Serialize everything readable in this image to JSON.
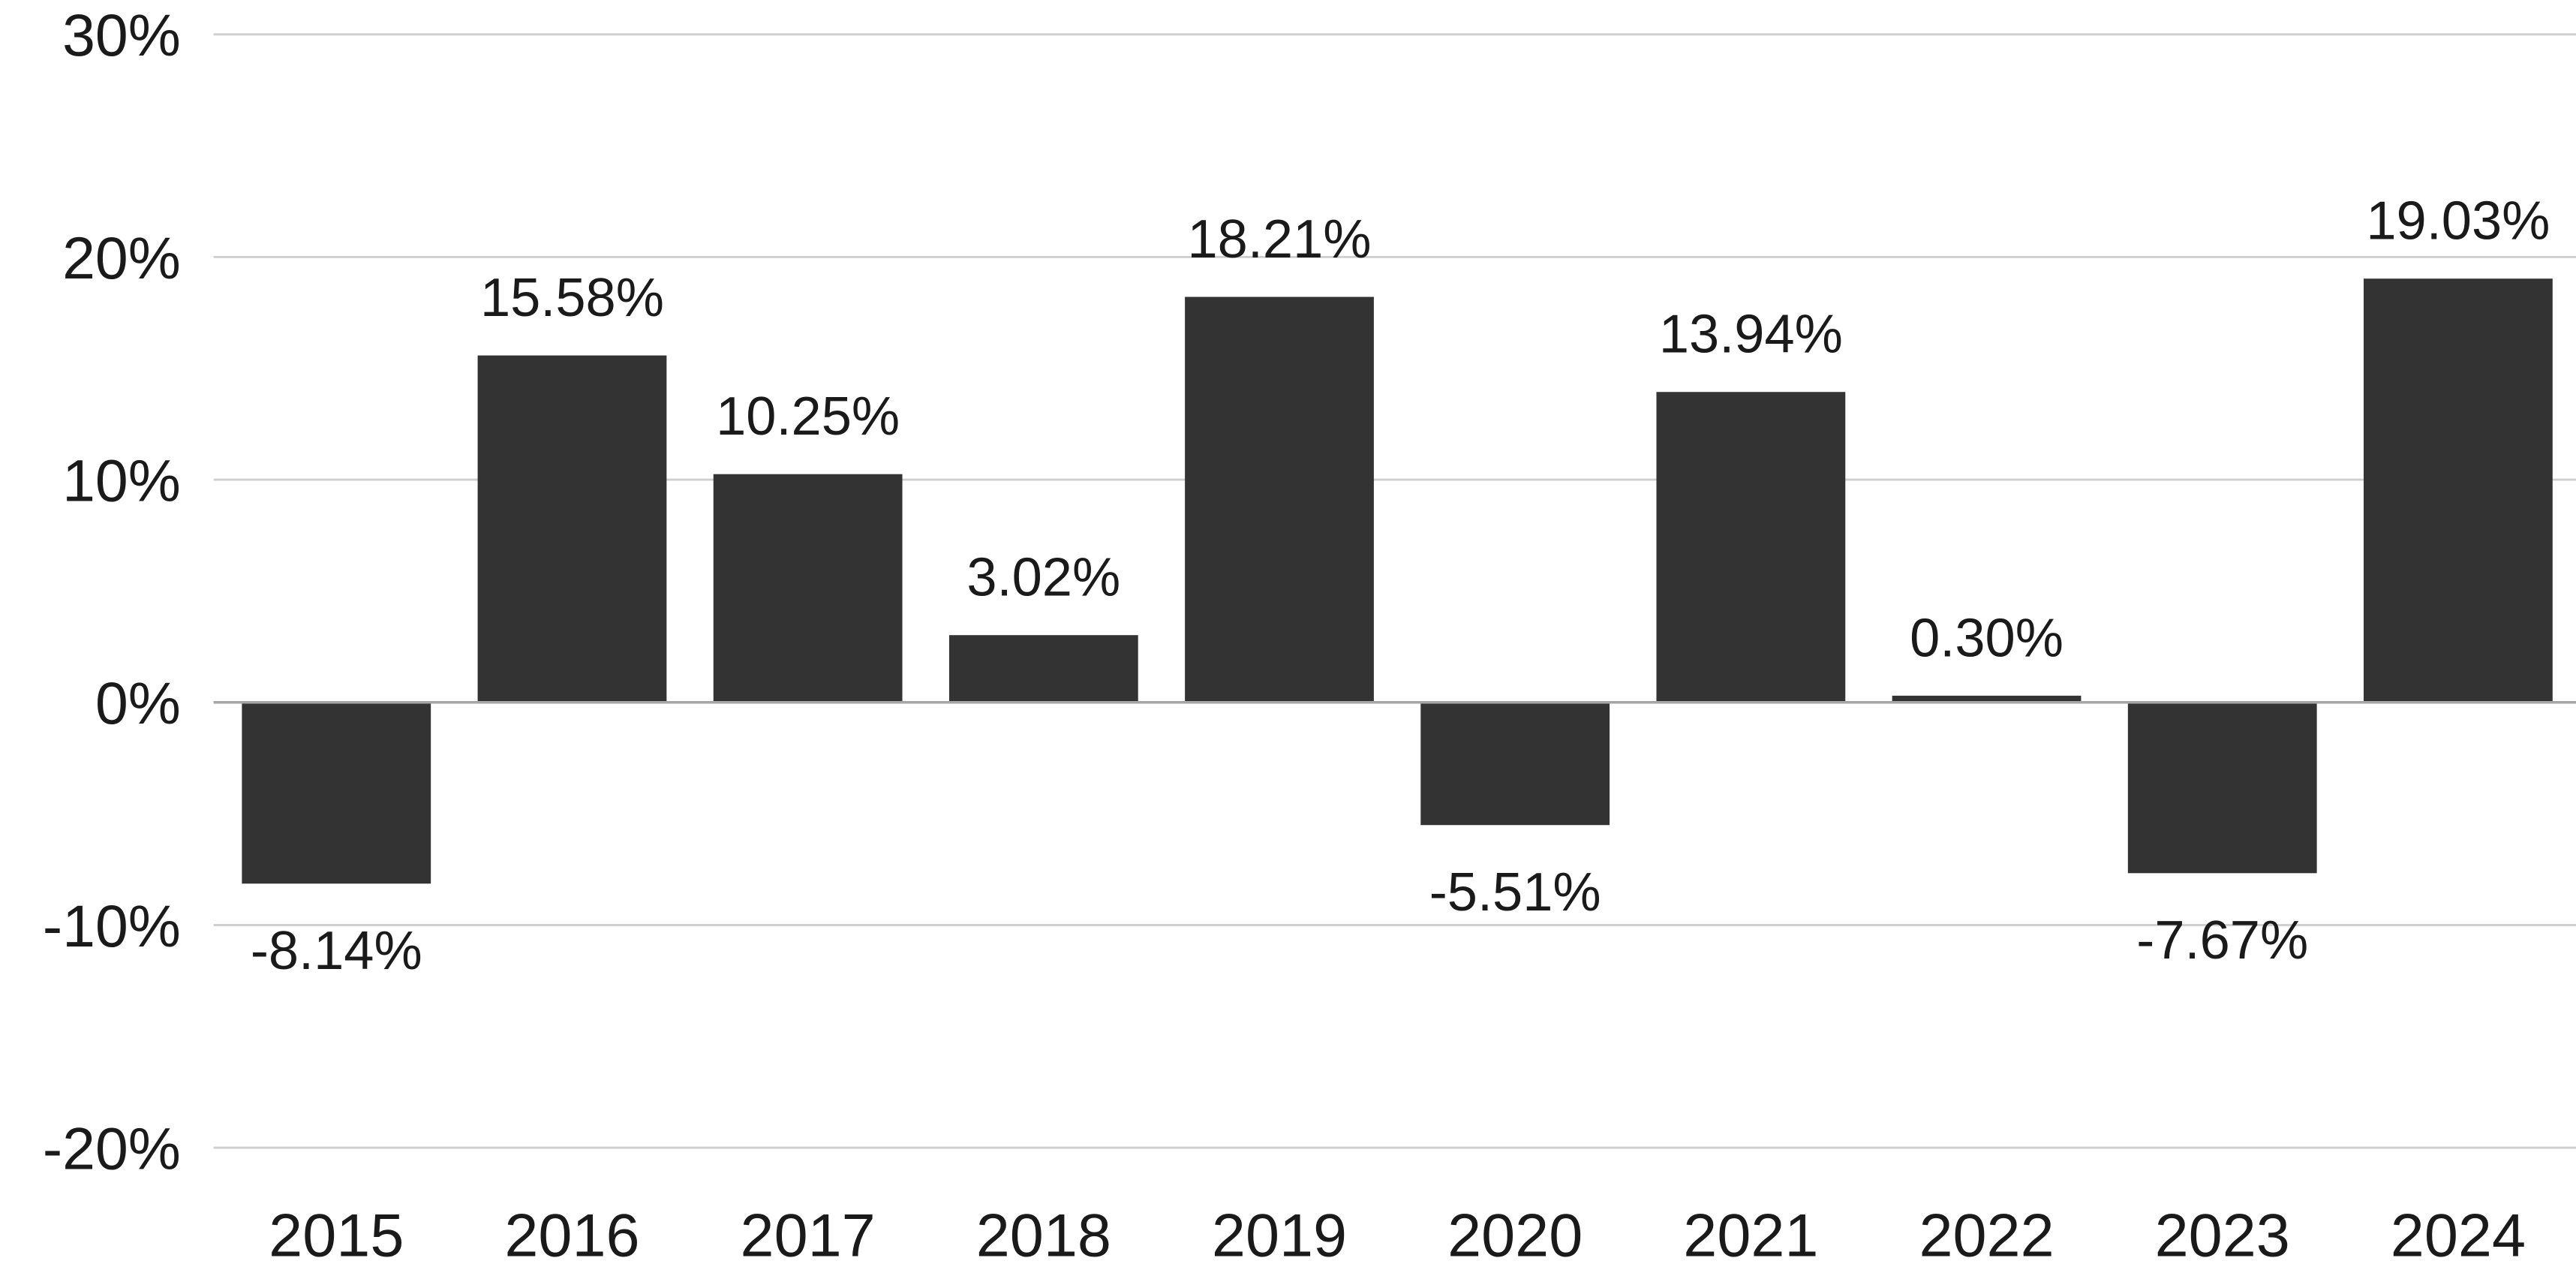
{
  "chart_data": {
    "type": "bar",
    "title": "",
    "xlabel": "",
    "ylabel": "",
    "categories": [
      "2015",
      "2016",
      "2017",
      "2018",
      "2019",
      "2020",
      "2021",
      "2022",
      "2023",
      "2024"
    ],
    "values": [
      -8.14,
      15.58,
      10.25,
      3.02,
      18.21,
      -5.51,
      13.94,
      0.3,
      -7.67,
      19.03
    ],
    "data_labels": [
      "-8.14%",
      "15.58%",
      "10.25%",
      "3.02%",
      "18.21%",
      "-5.51%",
      "13.94%",
      "0.30%",
      "-7.67%",
      "19.03%"
    ],
    "y_tick_values": [
      30,
      20,
      10,
      0,
      -10,
      -20
    ],
    "y_tick_labels": [
      "30%",
      "20%",
      "10%",
      "0%",
      "-10%",
      "-20%"
    ],
    "ylim": [
      -20,
      30
    ],
    "grid": true,
    "legend": "none"
  },
  "colors": {
    "bar": "#333333",
    "grid": "#cfcfcf",
    "zero_line": "#a6a6a6",
    "text": "#1a1a1a"
  }
}
